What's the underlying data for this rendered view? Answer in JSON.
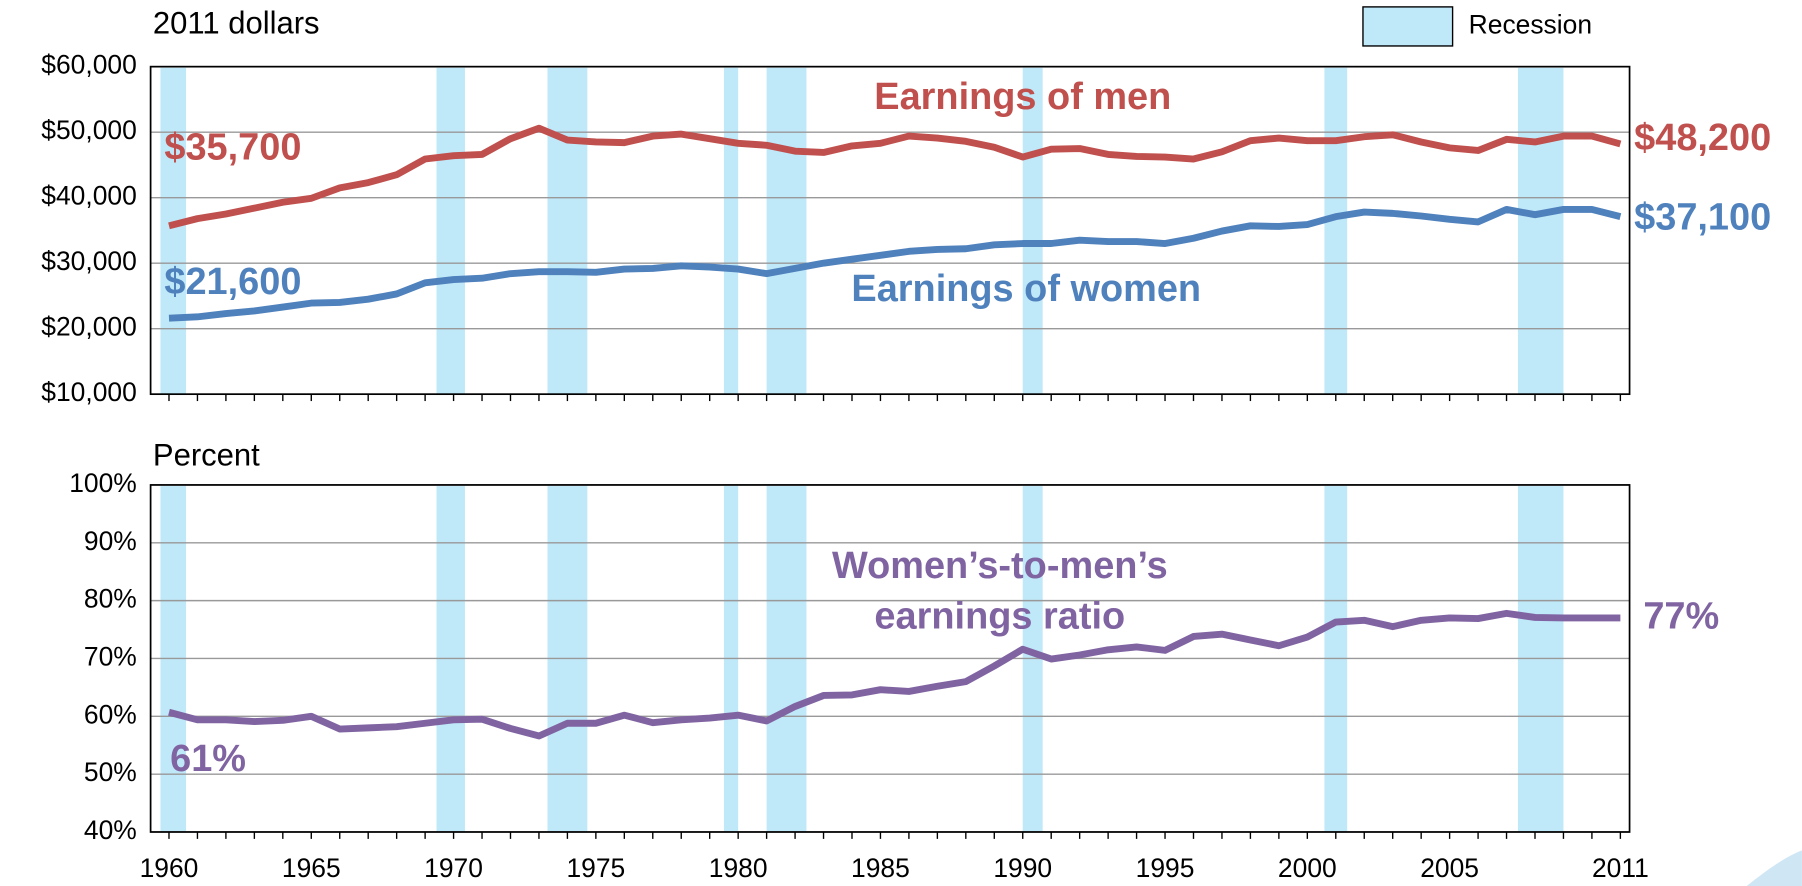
{
  "chart_data": [
    {
      "type": "line",
      "y_axis_label": "2011 dollars",
      "recession_label": "Recession",
      "recession_color": "#bfe8f9",
      "recessions": [
        [
          1959.7,
          1960.6
        ],
        [
          1969.4,
          1970.4
        ],
        [
          1973.3,
          1974.7
        ],
        [
          1979.5,
          1980.0
        ],
        [
          1981.0,
          1982.4
        ],
        [
          1990.0,
          1990.7
        ],
        [
          2000.6,
          2001.4
        ],
        [
          2007.4,
          2009.0
        ]
      ],
      "x": [
        1960,
        1961,
        1962,
        1963,
        1964,
        1965,
        1966,
        1967,
        1968,
        1969,
        1970,
        1971,
        1972,
        1973,
        1974,
        1975,
        1976,
        1977,
        1978,
        1979,
        1980,
        1981,
        1982,
        1983,
        1984,
        1985,
        1986,
        1987,
        1988,
        1989,
        1990,
        1991,
        1992,
        1993,
        1994,
        1995,
        1996,
        1997,
        1998,
        1999,
        2000,
        2001,
        2002,
        2003,
        2004,
        2005,
        2006,
        2007,
        2008,
        2009,
        2010,
        2011
      ],
      "xlim": [
        1959.4,
        2011.3
      ],
      "ylim": [
        10000,
        60000
      ],
      "yticks": [
        {
          "value": 10000,
          "label": "$10,000"
        },
        {
          "value": 20000,
          "label": "$20,000"
        },
        {
          "value": 30000,
          "label": "$30,000"
        },
        {
          "value": 40000,
          "label": "$40,000"
        },
        {
          "value": 50000,
          "label": "$50,000"
        },
        {
          "value": 60000,
          "label": "$60,000"
        }
      ],
      "grid": true,
      "series": [
        {
          "name": "Earnings of men",
          "color": "#c0504d",
          "start_label": "$35,700",
          "end_label": "$48,200",
          "values": [
            35700,
            36800,
            37500,
            38400,
            39300,
            39900,
            41500,
            42300,
            43500,
            45900,
            46400,
            46600,
            49000,
            50600,
            48800,
            48500,
            48400,
            49400,
            49700,
            49000,
            48300,
            48000,
            47100,
            46900,
            47900,
            48300,
            49400,
            49100,
            48600,
            47700,
            46200,
            47400,
            47500,
            46600,
            46300,
            46200,
            45900,
            47000,
            48700,
            49100,
            48700,
            48700,
            49300,
            49600,
            48500,
            47600,
            47200,
            48900,
            48500,
            49400,
            49400,
            48200
          ]
        },
        {
          "name": "Earnings of women",
          "color": "#4f81bd",
          "start_label": "$21,600",
          "end_label": "$37,100",
          "values": [
            21600,
            21800,
            22300,
            22700,
            23300,
            23900,
            24000,
            24500,
            25300,
            27000,
            27500,
            27700,
            28400,
            28700,
            28700,
            28600,
            29100,
            29200,
            29600,
            29400,
            29100,
            28400,
            29200,
            30000,
            30600,
            31200,
            31800,
            32100,
            32200,
            32800,
            33000,
            33000,
            33500,
            33300,
            33300,
            33000,
            33800,
            34900,
            35700,
            35600,
            35900,
            37100,
            37800,
            37600,
            37200,
            36700,
            36300,
            38200,
            37400,
            38200,
            38200,
            37100
          ]
        }
      ]
    },
    {
      "type": "line",
      "y_axis_label": "Percent",
      "recession_color": "#bfe8f9",
      "recessions": [
        [
          1959.7,
          1960.6
        ],
        [
          1969.4,
          1970.4
        ],
        [
          1973.3,
          1974.7
        ],
        [
          1979.5,
          1980.0
        ],
        [
          1981.0,
          1982.4
        ],
        [
          1990.0,
          1990.7
        ],
        [
          2000.6,
          2001.4
        ],
        [
          2007.4,
          2009.0
        ]
      ],
      "x": [
        1960,
        1961,
        1962,
        1963,
        1964,
        1965,
        1966,
        1967,
        1968,
        1969,
        1970,
        1971,
        1972,
        1973,
        1974,
        1975,
        1976,
        1977,
        1978,
        1979,
        1980,
        1981,
        1982,
        1983,
        1984,
        1985,
        1986,
        1987,
        1988,
        1989,
        1990,
        1991,
        1992,
        1993,
        1994,
        1995,
        1996,
        1997,
        1998,
        1999,
        2000,
        2001,
        2002,
        2003,
        2004,
        2005,
        2006,
        2007,
        2008,
        2009,
        2010,
        2011
      ],
      "xlim": [
        1959.4,
        2011.3
      ],
      "xticks": [
        1960,
        1965,
        1970,
        1975,
        1980,
        1985,
        1990,
        1995,
        2000,
        2005,
        2011
      ],
      "ylim": [
        40,
        100
      ],
      "yticks": [
        {
          "value": 40,
          "label": "40%"
        },
        {
          "value": 50,
          "label": "50%"
        },
        {
          "value": 60,
          "label": "60%"
        },
        {
          "value": 70,
          "label": "70%"
        },
        {
          "value": 80,
          "label": "80%"
        },
        {
          "value": 90,
          "label": "90%"
        },
        {
          "value": 100,
          "label": "100%"
        }
      ],
      "grid": true,
      "series": [
        {
          "name": "Women’s-to-men’s earnings ratio",
          "color": "#8064a2",
          "start_label": "61%",
          "end_label": "77%",
          "values": [
            60.7,
            59.4,
            59.4,
            59.1,
            59.3,
            60.0,
            57.8,
            58.0,
            58.2,
            58.8,
            59.4,
            59.5,
            57.9,
            56.6,
            58.8,
            58.8,
            60.2,
            58.9,
            59.4,
            59.7,
            60.2,
            59.2,
            61.7,
            63.6,
            63.7,
            64.6,
            64.3,
            65.2,
            66.0,
            68.7,
            71.6,
            69.9,
            70.6,
            71.5,
            72.0,
            71.4,
            73.8,
            74.2,
            73.2,
            72.2,
            73.7,
            76.3,
            76.6,
            75.5,
            76.6,
            77.0,
            76.9,
            77.8,
            77.1,
            77.0,
            77.0,
            77.0
          ]
        }
      ]
    }
  ]
}
